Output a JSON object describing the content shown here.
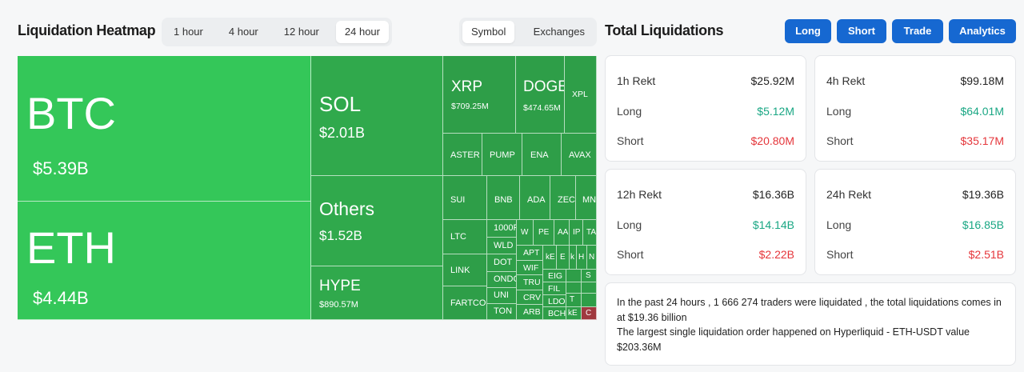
{
  "heatmap": {
    "title": "Liquidation Heatmap",
    "time_options": [
      "1 hour",
      "4 hour",
      "12 hour",
      "24 hour"
    ],
    "time_selected": "24 hour",
    "view_options": [
      "Symbol",
      "Exchanges"
    ],
    "view_selected": "Symbol",
    "tiles": {
      "btc": {
        "symbol": "BTC",
        "value": "$5.39B"
      },
      "eth": {
        "symbol": "ETH",
        "value": "$4.44B"
      },
      "sol": {
        "symbol": "SOL",
        "value": "$2.01B"
      },
      "others": {
        "symbol": "Others",
        "value": "$1.52B"
      },
      "hype": {
        "symbol": "HYPE",
        "value": "$890.57M"
      },
      "xrp": {
        "symbol": "XRP",
        "value": "$709.25M"
      },
      "doge": {
        "symbol": "DOGE",
        "value": "$474.65M"
      },
      "xpl": {
        "symbol": "XPL"
      },
      "aster": {
        "symbol": "ASTER"
      },
      "pump": {
        "symbol": "PUMP"
      },
      "ena": {
        "symbol": "ENA"
      },
      "avax": {
        "symbol": "AVAX"
      },
      "sui": {
        "symbol": "SUI"
      },
      "bnb": {
        "symbol": "BNB"
      },
      "ada": {
        "symbol": "ADA"
      },
      "zec": {
        "symbol": "ZEC"
      },
      "mn": {
        "symbol": "MN"
      },
      "ltc": {
        "symbol": "LTC"
      },
      "link": {
        "symbol": "LINK"
      },
      "fartcoin": {
        "symbol": "FARTCOI"
      },
      "t1000": {
        "symbol": "1000F"
      },
      "wld": {
        "symbol": "WLD"
      },
      "dot": {
        "symbol": "DOT"
      },
      "ondo": {
        "symbol": "ONDO"
      },
      "uni": {
        "symbol": "UNI"
      },
      "ton": {
        "symbol": "TON"
      },
      "w": {
        "symbol": "W"
      },
      "pe": {
        "symbol": "PE"
      },
      "aa": {
        "symbol": "AA"
      },
      "ip": {
        "symbol": "IP"
      },
      "ta": {
        "symbol": "TA"
      },
      "apt": {
        "symbol": "APT"
      },
      "wif": {
        "symbol": "WIF"
      },
      "tru": {
        "symbol": "TRU"
      },
      "crv": {
        "symbol": "CRV"
      },
      "arb": {
        "symbol": "ARB"
      },
      "k1": {
        "symbol": "kE"
      },
      "e1": {
        "symbol": "E"
      },
      "k2": {
        "symbol": "k"
      },
      "h1": {
        "symbol": "H"
      },
      "n1": {
        "symbol": "N"
      },
      "eig": {
        "symbol": "EIG"
      },
      "fil": {
        "symbol": "FIL"
      },
      "ldo": {
        "symbol": "LDO"
      },
      "bch": {
        "symbol": "BCH"
      },
      "s1": {
        "symbol": "S"
      },
      "t1": {
        "symbol": "T"
      },
      "k3": {
        "symbol": "kE"
      },
      "c1": {
        "symbol": "C"
      }
    }
  },
  "totals": {
    "title": "Total Liquidations",
    "buttons": [
      "Long",
      "Short",
      "Trade",
      "Analytics"
    ],
    "cards": [
      {
        "label": "1h Rekt",
        "total": "$25.92M",
        "long_label": "Long",
        "long": "$5.12M",
        "short_label": "Short",
        "short": "$20.80M"
      },
      {
        "label": "4h Rekt",
        "total": "$99.18M",
        "long_label": "Long",
        "long": "$64.01M",
        "short_label": "Short",
        "short": "$35.17M"
      },
      {
        "label": "12h Rekt",
        "total": "$16.36B",
        "long_label": "Long",
        "long": "$14.14B",
        "short_label": "Short",
        "short": "$2.22B"
      },
      {
        "label": "24h Rekt",
        "total": "$19.36B",
        "long_label": "Long",
        "long": "$16.85B",
        "short_label": "Short",
        "short": "$2.51B"
      }
    ],
    "summary_line1": "In the past 24 hours , 1 666 274 traders were liquidated , the total liquidations comes in at $19.36 billion",
    "summary_line2": "The largest single liquidation order happened on Hyperliquid - ETH-USDT value $203.36M"
  },
  "colors": {
    "accent": "#1668d1",
    "tile_major": "#34c759",
    "tile_minor": "#2e9e48",
    "tile_negative": "#a0393f",
    "long": "#1aa784",
    "short": "#e5363b"
  }
}
